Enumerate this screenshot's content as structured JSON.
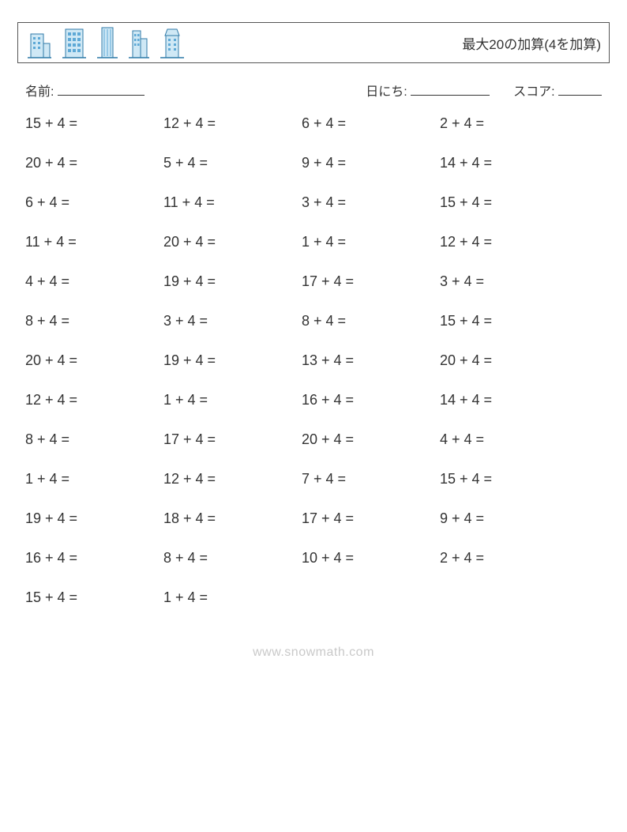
{
  "header": {
    "title": "最大20の加算(4を加算)",
    "icon_fill": "#5ea9d6",
    "icon_stroke": "#2f7aa8"
  },
  "meta": {
    "name_label": "名前:",
    "date_label": "日にち:",
    "score_label": "スコア:",
    "name_blank_width": 110,
    "date_blank_width": 100,
    "score_blank_width": 55
  },
  "grid": {
    "columns": 4,
    "rows": [
      [
        "15 + 4 =",
        "12 + 4 =",
        "6 + 4 =",
        "2 + 4 ="
      ],
      [
        "20 + 4 =",
        "5 + 4 =",
        "9 + 4 =",
        "14 + 4 ="
      ],
      [
        "6 + 4 =",
        "11 + 4 =",
        "3 + 4 =",
        "15 + 4 ="
      ],
      [
        "11 + 4 =",
        "20 + 4 =",
        "1 + 4 =",
        "12 + 4 ="
      ],
      [
        "4 + 4 =",
        "19 + 4 =",
        "17 + 4 =",
        "3 + 4 ="
      ],
      [
        "8 + 4 =",
        "3 + 4 =",
        "8 + 4 =",
        "15 + 4 ="
      ],
      [
        "20 + 4 =",
        "19 + 4 =",
        "13 + 4 =",
        "20 + 4 ="
      ],
      [
        "12 + 4 =",
        "1 + 4 =",
        "16 + 4 =",
        "14 + 4 ="
      ],
      [
        "8 + 4 =",
        "17 + 4 =",
        "20 + 4 =",
        "4 + 4 ="
      ],
      [
        "1 + 4 =",
        "12 + 4 =",
        "7 + 4 =",
        "15 + 4 ="
      ],
      [
        "19 + 4 =",
        "18 + 4 =",
        "17 + 4 =",
        "9 + 4 ="
      ],
      [
        "16 + 4 =",
        "8 + 4 =",
        "10 + 4 =",
        "2 + 4 ="
      ],
      [
        "15 + 4 =",
        "1 + 4 =",
        "",
        ""
      ]
    ]
  },
  "footer": {
    "text": "www.snowmath.com"
  }
}
